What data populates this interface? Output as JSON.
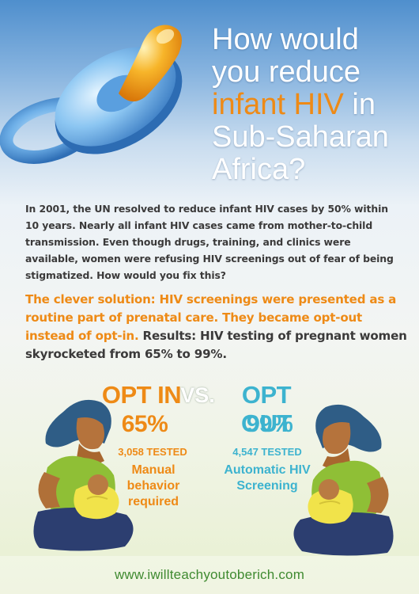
{
  "headline": {
    "line1": "How would",
    "line2": "you reduce",
    "highlight": "infant HIV",
    "line3_suffix": " in",
    "line4": "Sub-Saharan",
    "line5": "Africa?"
  },
  "body": {
    "intro": "In 2001, the UN resolved to reduce infant HIV cases by 50% within 10 years. Nearly all infant HIV cases came from mother-to-child transmission. Even though drugs, training, and clinics were available, women were refusing HIV screenings out of fear of being stigmatized.  How would you fix this?",
    "solution_highlight": "The clever solution: HIV screenings were presented as a routine part of prenatal care. They became opt-out instead of opt-in.",
    "solution_results": " Results: HIV testing of pregnant women skyrocketed from 65% to 99%."
  },
  "comparison": {
    "opt_in": {
      "title": "OPT IN",
      "percent": "65%",
      "tested": "3,058 TESTED",
      "description": "Manual behavior required"
    },
    "vs": "VS.",
    "opt_out": {
      "title": "OPT OUT",
      "percent": "99%",
      "tested": "4,547 TESTED",
      "description": "Automatic HIV Screening"
    }
  },
  "footer": {
    "url": "www.iwillteachyoutoberich.com"
  },
  "colors": {
    "accent_orange": "#ee8a16",
    "accent_teal": "#3db3cf",
    "footer_green": "#3f8a30",
    "text_dark": "#3b3a3a"
  },
  "icons": [
    "pacifier-illustration",
    "mother-and-baby-illustration"
  ]
}
